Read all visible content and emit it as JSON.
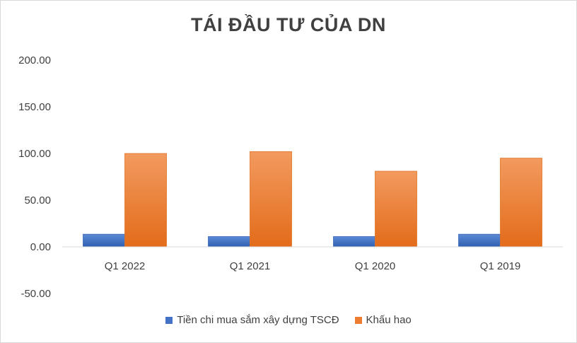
{
  "chart_data": {
    "type": "bar",
    "title": "TÁI ĐẦU TƯ CỦA DN",
    "categories": [
      "Q1 2022",
      "Q1 2021",
      "Q1 2020",
      "Q1 2019"
    ],
    "series": [
      {
        "name": "Tiền chi mua sắm xây dựng TSCĐ",
        "color": "#4472c4",
        "values": [
          13.5,
          11.0,
          11.0,
          13.5
        ]
      },
      {
        "name": "Khấu hao",
        "color": "#ed7d31",
        "values": [
          100.0,
          102.0,
          81.0,
          95.0
        ]
      }
    ],
    "ylim": [
      -50,
      200
    ],
    "yticks": [
      "200.00",
      "150.00",
      "100.00",
      "50.00",
      "0.00",
      "-50.00"
    ],
    "ytick_values": [
      200,
      150,
      100,
      50,
      0,
      -50
    ],
    "legend": "bottom",
    "grid": false
  }
}
